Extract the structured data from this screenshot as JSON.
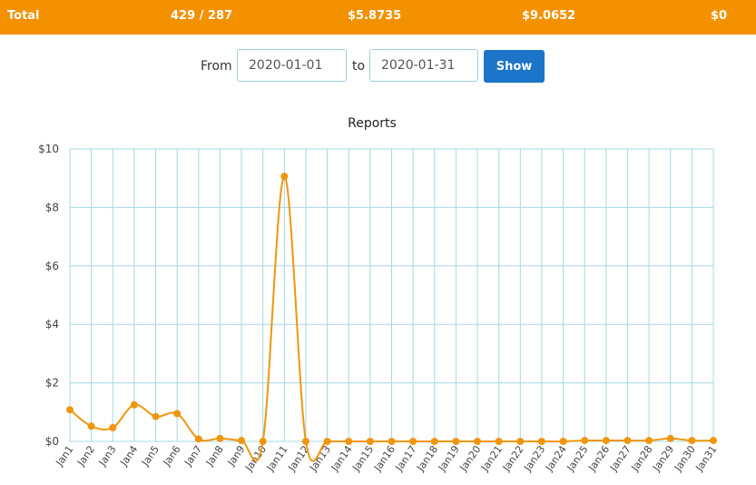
{
  "totals": {
    "label": "Total",
    "count": "429 / 287",
    "value1": "$5.8735",
    "value2": "$9.0652",
    "value3": "$0",
    "bar_color": "#f39100"
  },
  "filter": {
    "from_label": "From",
    "start_date": "2020-01-01",
    "to_label": "to",
    "end_date": "2020-01-31",
    "show_label": "Show",
    "button_color": "#1c75c8"
  },
  "chart_data": {
    "type": "line",
    "title": "Reports",
    "xlabel": "",
    "ylabel": "",
    "ylim": [
      0,
      10
    ],
    "y_ticks": [
      "$0",
      "$2",
      "$4",
      "$6",
      "$8",
      "$10"
    ],
    "categories": [
      "Jan1",
      "Jan2",
      "Jan3",
      "Jan4",
      "Jan5",
      "Jan6",
      "Jan7",
      "Jan8",
      "Jan9",
      "Jan10",
      "Jan11",
      "Jan12",
      "Jan13",
      "Jan14",
      "Jan15",
      "Jan16",
      "Jan17",
      "Jan18",
      "Jan19",
      "Jan20",
      "Jan21",
      "Jan22",
      "Jan23",
      "Jan24",
      "Jan25",
      "Jan26",
      "Jan27",
      "Jan28",
      "Jan29",
      "Jan30",
      "Jan31"
    ],
    "series": [
      {
        "values": [
          1.08,
          0.52,
          0.47,
          1.25,
          0.85,
          0.95,
          0.08,
          0.1,
          0.03,
          0.0,
          9.0652,
          0.0,
          0.0,
          0.0,
          0.0,
          0.0,
          0.0,
          0.0,
          0.0,
          0.0,
          0.0,
          0.0,
          0.0,
          0.0,
          0.03,
          0.03,
          0.03,
          0.03,
          0.1,
          0.03,
          0.03
        ],
        "color": "#f0960e"
      }
    ],
    "grid": true,
    "grid_color": "#a8d8e3",
    "legend": "none"
  }
}
